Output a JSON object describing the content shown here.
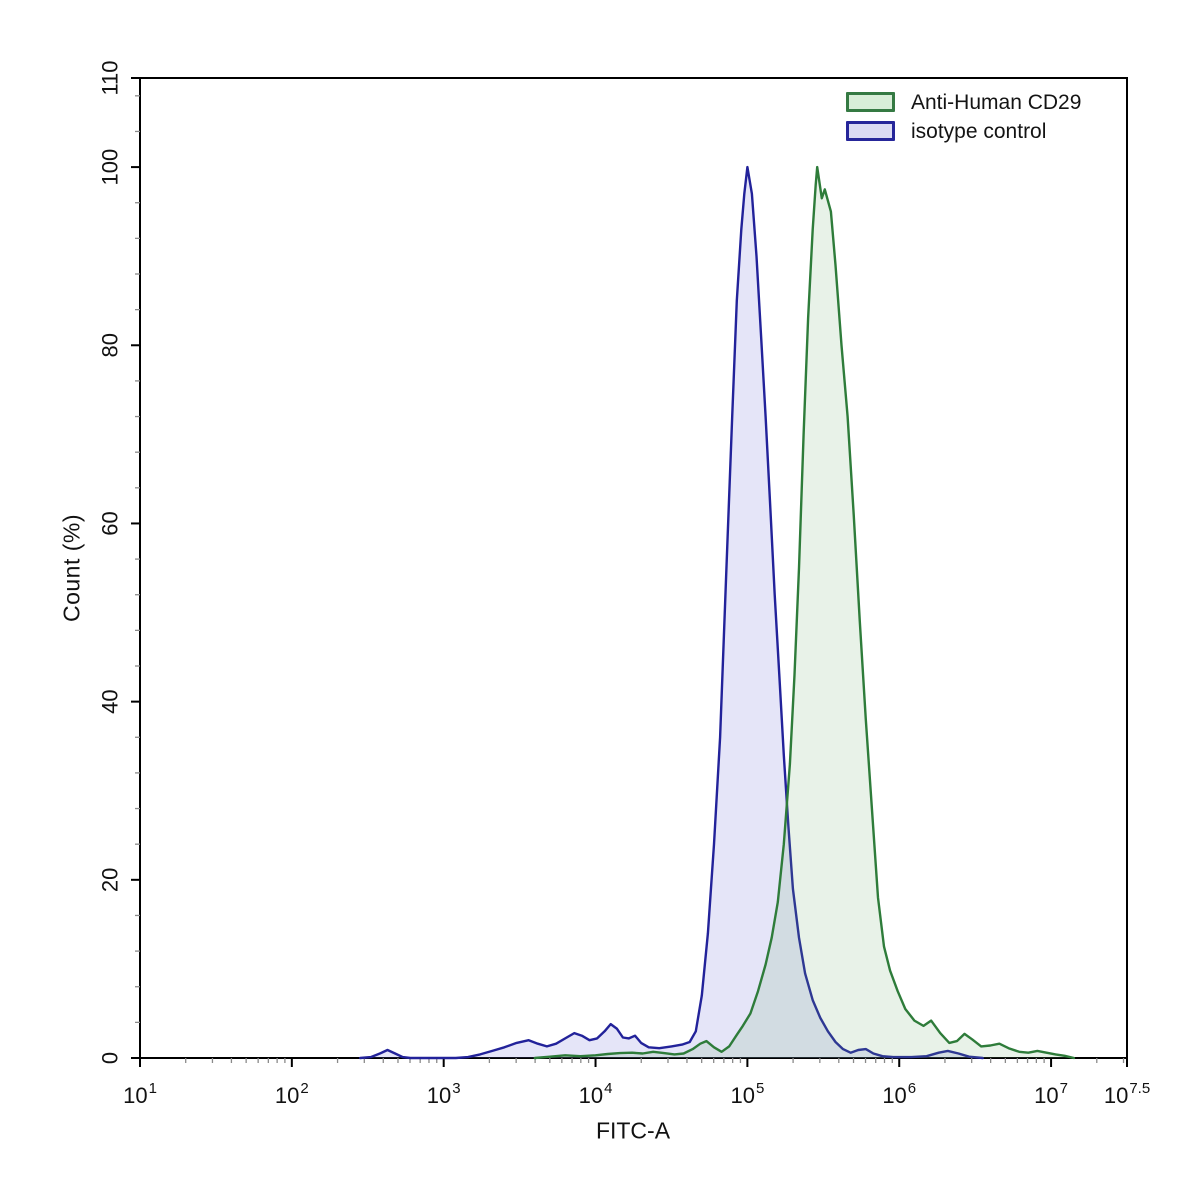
{
  "legend": {
    "items": [
      {
        "label": "Anti-Human CD29",
        "fill": "#d8eed8",
        "border": "#357a43"
      },
      {
        "label": "isotype control",
        "fill": "#dbdbf3",
        "border": "#26269a"
      }
    ],
    "position": "top-right"
  },
  "chart_data": {
    "type": "area",
    "title": "",
    "xlabel": "FITC-A",
    "ylabel": "Count  (%)",
    "x_scale": "log10",
    "x_log10_range": [
      1,
      7.5
    ],
    "ylim": [
      0,
      110
    ],
    "grid": false,
    "y_major_ticks": [
      0,
      20,
      40,
      60,
      80,
      100,
      110
    ],
    "y_minor_tick_step": 4,
    "x_major_ticks": [
      {
        "base": "10",
        "exp": "1",
        "log10": 1
      },
      {
        "base": "10",
        "exp": "2",
        "log10": 2
      },
      {
        "base": "10",
        "exp": "3",
        "log10": 3
      },
      {
        "base": "10",
        "exp": "4",
        "log10": 4
      },
      {
        "base": "10",
        "exp": "5",
        "log10": 5
      },
      {
        "base": "10",
        "exp": "6",
        "log10": 6
      },
      {
        "base": "10",
        "exp": "7",
        "log10": 7
      },
      {
        "base": "10",
        "exp": "7.5",
        "log10": 7.5
      }
    ],
    "legend_position": "top-right",
    "series": [
      {
        "name": "Anti-Human CD29",
        "stroke": "#2e7c3a",
        "fill": "rgba(110,175,110,0.16)",
        "peak_log10x": 5.46,
        "peak_pct": 100,
        "points_log10x_pct": [
          [
            3.6,
            0
          ],
          [
            3.7,
            0.15
          ],
          [
            3.8,
            0.3
          ],
          [
            3.9,
            0.2
          ],
          [
            4.0,
            0.3
          ],
          [
            4.08,
            0.45
          ],
          [
            4.16,
            0.55
          ],
          [
            4.24,
            0.6
          ],
          [
            4.31,
            0.5
          ],
          [
            4.38,
            0.7
          ],
          [
            4.45,
            0.55
          ],
          [
            4.52,
            0.4
          ],
          [
            4.58,
            0.5
          ],
          [
            4.64,
            1.0
          ],
          [
            4.69,
            1.6
          ],
          [
            4.73,
            1.9
          ],
          [
            4.78,
            1.2
          ],
          [
            4.83,
            0.7
          ],
          [
            4.88,
            1.3
          ],
          [
            4.93,
            2.6
          ],
          [
            4.97,
            3.6
          ],
          [
            5.02,
            5
          ],
          [
            5.07,
            7.5
          ],
          [
            5.12,
            10.5
          ],
          [
            5.16,
            13.5
          ],
          [
            5.2,
            17.5
          ],
          [
            5.24,
            24
          ],
          [
            5.28,
            33
          ],
          [
            5.31,
            43
          ],
          [
            5.34,
            55
          ],
          [
            5.37,
            70
          ],
          [
            5.4,
            83
          ],
          [
            5.43,
            93
          ],
          [
            5.45,
            98
          ],
          [
            5.46,
            100
          ],
          [
            5.49,
            96.5
          ],
          [
            5.51,
            97.5
          ],
          [
            5.55,
            95
          ],
          [
            5.58,
            89
          ],
          [
            5.62,
            80
          ],
          [
            5.66,
            72
          ],
          [
            5.7,
            61
          ],
          [
            5.74,
            49
          ],
          [
            5.78,
            38
          ],
          [
            5.82,
            28
          ],
          [
            5.86,
            18
          ],
          [
            5.9,
            12.5
          ],
          [
            5.94,
            9.8
          ],
          [
            5.99,
            7.5
          ],
          [
            6.04,
            5.5
          ],
          [
            6.1,
            4.2
          ],
          [
            6.16,
            3.6
          ],
          [
            6.21,
            4.2
          ],
          [
            6.27,
            2.8
          ],
          [
            6.33,
            1.7
          ],
          [
            6.38,
            1.9
          ],
          [
            6.43,
            2.7
          ],
          [
            6.48,
            2.1
          ],
          [
            6.54,
            1.3
          ],
          [
            6.6,
            1.4
          ],
          [
            6.66,
            1.6
          ],
          [
            6.72,
            1.1
          ],
          [
            6.79,
            0.7
          ],
          [
            6.85,
            0.6
          ],
          [
            6.91,
            0.8
          ],
          [
            6.97,
            0.6
          ],
          [
            7.03,
            0.4
          ],
          [
            7.09,
            0.25
          ],
          [
            7.15,
            0
          ]
        ]
      },
      {
        "name": "isotype control",
        "stroke": "#22229a",
        "fill": "rgba(110,110,215,0.18)",
        "peak_log10x": 5.0,
        "peak_pct": 100,
        "points_log10x_pct": [
          [
            2.45,
            0
          ],
          [
            2.52,
            0.1
          ],
          [
            2.58,
            0.5
          ],
          [
            2.63,
            0.9
          ],
          [
            2.68,
            0.5
          ],
          [
            2.73,
            0.1
          ],
          [
            2.78,
            0
          ],
          [
            3.08,
            0
          ],
          [
            3.16,
            0.1
          ],
          [
            3.24,
            0.4
          ],
          [
            3.32,
            0.8
          ],
          [
            3.4,
            1.2
          ],
          [
            3.48,
            1.7
          ],
          [
            3.56,
            2.0
          ],
          [
            3.62,
            1.6
          ],
          [
            3.68,
            1.3
          ],
          [
            3.74,
            1.6
          ],
          [
            3.8,
            2.2
          ],
          [
            3.86,
            2.8
          ],
          [
            3.91,
            2.5
          ],
          [
            3.96,
            2.0
          ],
          [
            4.01,
            2.2
          ],
          [
            4.06,
            3.0
          ],
          [
            4.1,
            3.8
          ],
          [
            4.14,
            3.3
          ],
          [
            4.18,
            2.3
          ],
          [
            4.22,
            2.2
          ],
          [
            4.26,
            2.5
          ],
          [
            4.3,
            1.7
          ],
          [
            4.35,
            1.2
          ],
          [
            4.42,
            1.1
          ],
          [
            4.5,
            1.3
          ],
          [
            4.57,
            1.5
          ],
          [
            4.62,
            1.8
          ],
          [
            4.66,
            3.0
          ],
          [
            4.7,
            7
          ],
          [
            4.74,
            14
          ],
          [
            4.78,
            24
          ],
          [
            4.82,
            36
          ],
          [
            4.86,
            54
          ],
          [
            4.9,
            72
          ],
          [
            4.93,
            85
          ],
          [
            4.96,
            93
          ],
          [
            4.98,
            97
          ],
          [
            5.0,
            100
          ],
          [
            5.03,
            97
          ],
          [
            5.06,
            90
          ],
          [
            5.09,
            81
          ],
          [
            5.12,
            72
          ],
          [
            5.15,
            62
          ],
          [
            5.18,
            52
          ],
          [
            5.21,
            43
          ],
          [
            5.24,
            34
          ],
          [
            5.27,
            26
          ],
          [
            5.3,
            19
          ],
          [
            5.34,
            13.5
          ],
          [
            5.38,
            9.5
          ],
          [
            5.43,
            6.5
          ],
          [
            5.48,
            4.5
          ],
          [
            5.53,
            3.0
          ],
          [
            5.58,
            1.8
          ],
          [
            5.63,
            1.0
          ],
          [
            5.68,
            0.6
          ],
          [
            5.73,
            0.9
          ],
          [
            5.78,
            1.0
          ],
          [
            5.83,
            0.5
          ],
          [
            5.89,
            0.2
          ],
          [
            5.96,
            0.1
          ],
          [
            6.08,
            0.1
          ],
          [
            6.18,
            0.2
          ],
          [
            6.26,
            0.6
          ],
          [
            6.32,
            0.8
          ],
          [
            6.39,
            0.5
          ],
          [
            6.46,
            0.15
          ],
          [
            6.55,
            0
          ]
        ]
      }
    ]
  }
}
